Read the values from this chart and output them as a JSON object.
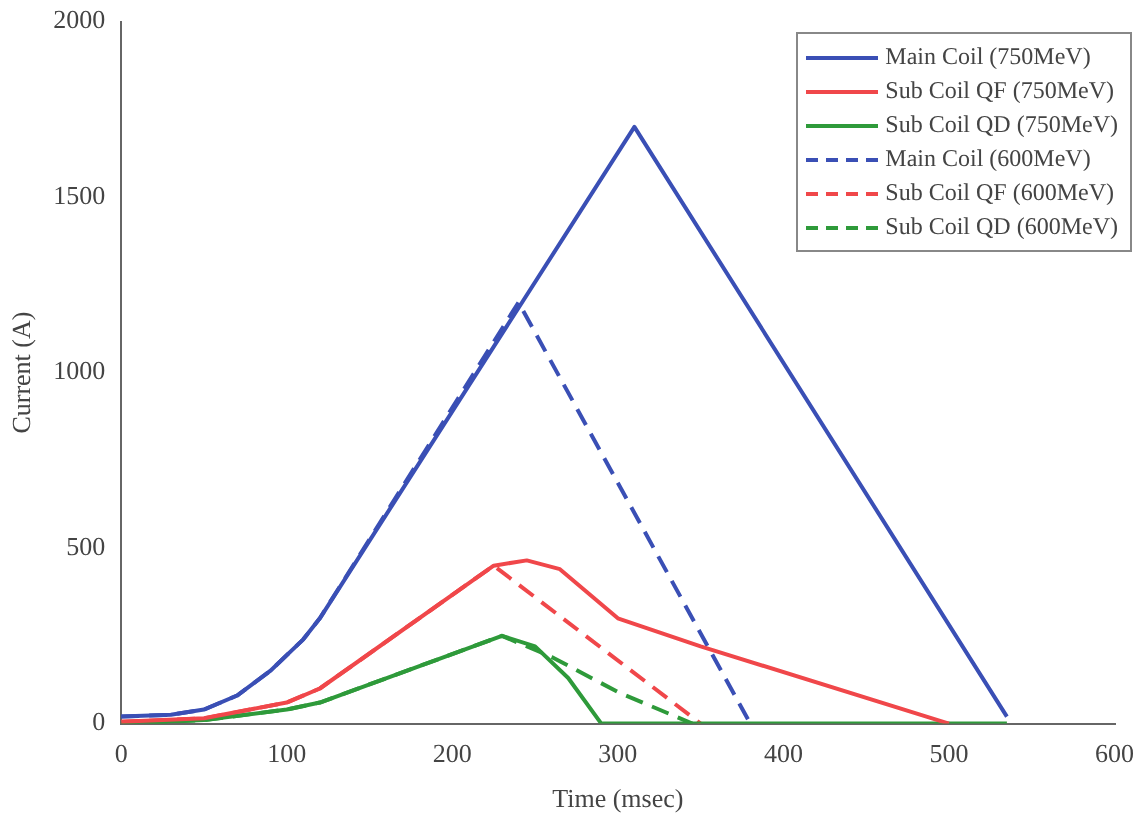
{
  "chart_data": {
    "type": "line",
    "xlabel": "Time (msec)",
    "ylabel": "Current (A)",
    "xlim": [
      0,
      600
    ],
    "xticks": [
      0,
      100,
      200,
      300,
      400,
      500,
      600
    ],
    "ylim": [
      0,
      2000
    ],
    "yticks": [
      0,
      500,
      1000,
      1500,
      2000
    ],
    "grid": false,
    "legend": "top right",
    "marker": "none",
    "series": [
      {
        "name": "Main Coil (750MeV)",
        "color": "#3a4fb5",
        "line_style": "solid",
        "x": [
          0,
          30,
          50,
          70,
          90,
          110,
          120,
          310,
          535
        ],
        "values": [
          20,
          25,
          40,
          80,
          150,
          240,
          300,
          1700,
          20
        ]
      },
      {
        "name": "Sub Coil QF (750MeV)",
        "color": "#f0474a",
        "line_style": "solid",
        "x": [
          0,
          50,
          100,
          120,
          225,
          245,
          265,
          300,
          350,
          500
        ],
        "values": [
          5,
          15,
          60,
          100,
          450,
          465,
          440,
          300,
          220,
          0
        ]
      },
      {
        "name": "Sub Coil QD (750MeV)",
        "color": "#2e9a3a",
        "line_style": "solid",
        "x": [
          0,
          50,
          100,
          120,
          230,
          250,
          270,
          290,
          500,
          535
        ],
        "values": [
          0,
          10,
          40,
          60,
          250,
          220,
          130,
          0,
          0,
          0
        ]
      },
      {
        "name": "Main Coil (600MeV)",
        "color": "#3a4fb5",
        "line_style": "dashed",
        "x": [
          0,
          30,
          50,
          70,
          90,
          110,
          120,
          240,
          380
        ],
        "values": [
          20,
          25,
          40,
          80,
          150,
          240,
          300,
          1200,
          0
        ]
      },
      {
        "name": "Sub Coil QF (600MeV)",
        "color": "#f0474a",
        "line_style": "dashed",
        "x": [
          0,
          50,
          100,
          120,
          225,
          350
        ],
        "values": [
          5,
          15,
          60,
          100,
          450,
          0
        ]
      },
      {
        "name": "Sub Coil QD (600MeV)",
        "color": "#2e9a3a",
        "line_style": "dashed",
        "x": [
          0,
          50,
          100,
          120,
          230,
          260,
          300,
          345
        ],
        "values": [
          0,
          10,
          40,
          60,
          250,
          190,
          90,
          0
        ]
      }
    ]
  }
}
